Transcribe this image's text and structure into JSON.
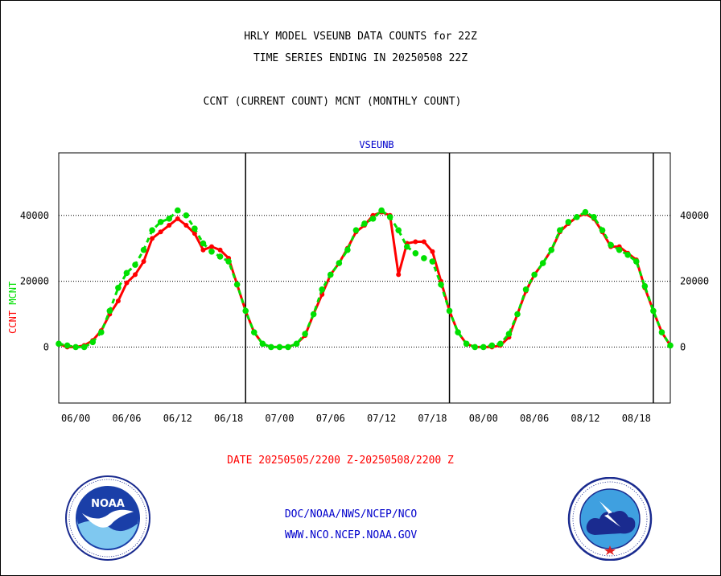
{
  "header": {
    "title_line1": "HRLY MODEL VSEUNB DATA COUNTS for 22Z",
    "title_line2": "TIME SERIES ENDING IN 20250508 22Z",
    "title_line3": "CCNT (CURRENT COUNT) MCNT (MONTHLY COUNT)"
  },
  "chart_data": {
    "type": "line",
    "title": "VSEUNB",
    "ylabel_series1": "CCNT",
    "ylabel_series2": "MCNT",
    "xlabel": "DATE 20250505/2200 Z-20250508/2200 Z",
    "ylim": [
      -17000,
      59000
    ],
    "yticks": [
      0,
      20000,
      40000
    ],
    "ytick_labels": [
      "0",
      "20000",
      "40000"
    ],
    "xticks": [
      "06/00",
      "06/06",
      "06/12",
      "06/18",
      "07/00",
      "07/06",
      "07/12",
      "07/18",
      "08/00",
      "08/06",
      "08/12",
      "08/18"
    ],
    "xlim_hours": [
      0,
      72
    ],
    "grid_horizontal": true,
    "day_separators": [
      "06/20",
      "07/20",
      "08/20"
    ],
    "colors": {
      "CCNT": "#ff0000",
      "MCNT": "#00e000",
      "title": "#0000cc"
    },
    "series": [
      {
        "name": "CCNT",
        "values": [
          1000,
          0,
          0,
          500,
          2000,
          5000,
          10000,
          14000,
          19500,
          22000,
          26000,
          33000,
          35000,
          37000,
          39000,
          37000,
          34500,
          29500,
          30500,
          29500,
          27000,
          19000,
          11000,
          4500,
          1000,
          0,
          0,
          0,
          1000,
          3500,
          10000,
          16000,
          22000,
          25500,
          30000,
          35000,
          37000,
          40000,
          41000,
          40000,
          22000,
          31500,
          32000,
          32000,
          29000,
          20000,
          11000,
          4500,
          1000,
          0,
          0,
          0,
          500,
          3000,
          10000,
          17000,
          22000,
          25500,
          29500,
          35000,
          37500,
          39500,
          40500,
          39000,
          35000,
          30500,
          30500,
          28500,
          26500,
          18000,
          11000,
          4500,
          500
        ]
      },
      {
        "name": "MCNT",
        "values": [
          1000,
          500,
          0,
          0,
          1500,
          4500,
          11000,
          18000,
          22500,
          25000,
          29500,
          35500,
          38000,
          39000,
          41500,
          40000,
          36000,
          31500,
          29000,
          27500,
          26000,
          19000,
          11000,
          4500,
          1000,
          0,
          0,
          0,
          1000,
          4000,
          10000,
          17500,
          22000,
          25500,
          29500,
          35500,
          37500,
          39000,
          41500,
          39500,
          35500,
          30500,
          28500,
          27000,
          26000,
          19000,
          11000,
          4500,
          1000,
          0,
          0,
          500,
          1000,
          4000,
          10000,
          17500,
          22000,
          25500,
          29500,
          35500,
          38000,
          39500,
          41000,
          39500,
          35500,
          31000,
          29500,
          28000,
          26000,
          18500,
          11000,
          4500,
          500
        ]
      }
    ]
  },
  "footer": {
    "line1": "DOC/NOAA/NWS/NCEP/NCO",
    "line2": "WWW.NCO.NCEP.NOAA.GOV"
  },
  "logos": {
    "left": "noaa-logo",
    "left_text": "NOAA",
    "right": "nws-logo"
  }
}
